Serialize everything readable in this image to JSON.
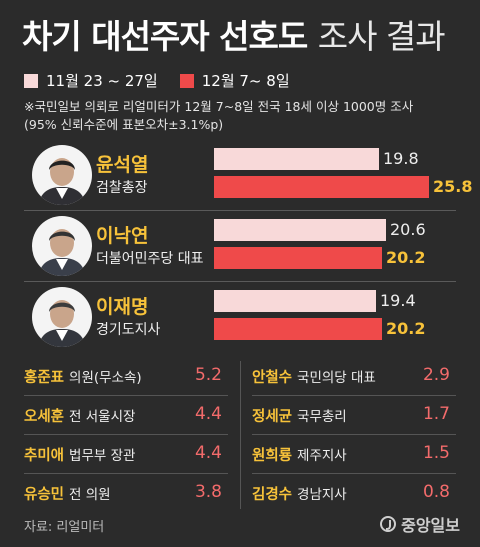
{
  "title": {
    "bold": "차기 대선주자 선호도",
    "light": "조사 결과"
  },
  "legend": [
    {
      "label": "11월 23 ~ 27일",
      "color": "#f8d9d9"
    },
    {
      "label": "12월 7~ 8일",
      "color": "#ef4a4a"
    }
  ],
  "note": {
    "line1": "※국민일보 의뢰로 리얼미터가 12월 7~8일 전국 18세 이상 1000명 조사",
    "line2": "(95% 신뢰수준에 표본오차±3.1%p)"
  },
  "chart_data": {
    "type": "bar",
    "categories": [
      "윤석열",
      "이낙연",
      "이재명"
    ],
    "roles": [
      "검찰총장",
      "더불어민주당 대표",
      "경기도지사"
    ],
    "series": [
      {
        "name": "11월 23 ~ 27일",
        "values": [
          19.8,
          20.6,
          19.4
        ]
      },
      {
        "name": "12월 7~ 8일",
        "values": [
          25.8,
          20.2,
          20.2
        ]
      }
    ],
    "ylim": [
      0,
      25.8
    ]
  },
  "others": [
    {
      "name": "홍준표",
      "role": "의원(무소속)",
      "value": "5.2"
    },
    {
      "name": "오세훈",
      "role": "전 서울시장",
      "value": "4.4"
    },
    {
      "name": "추미애",
      "role": "법무부 장관",
      "value": "4.4"
    },
    {
      "name": "유승민",
      "role": "전 의원",
      "value": "3.8"
    },
    {
      "name": "안철수",
      "role": "국민의당 대표",
      "value": "2.9"
    },
    {
      "name": "정세균",
      "role": "국무총리",
      "value": "1.7"
    },
    {
      "name": "원희룡",
      "role": "제주지사",
      "value": "1.5"
    },
    {
      "name": "김경수",
      "role": "경남지사",
      "value": "0.8"
    }
  ],
  "source": "자료: 리얼미터",
  "logo": "중앙일보"
}
